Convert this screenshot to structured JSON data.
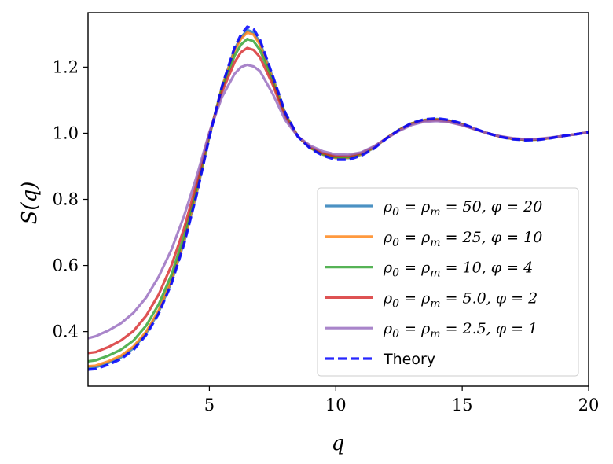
{
  "chart_data": {
    "type": "line",
    "title": "",
    "xlabel": "q",
    "ylabel": "S(q)",
    "xlim": [
      0.2,
      20
    ],
    "ylim": [
      0.235,
      1.365
    ],
    "x_ticks": [
      5,
      10,
      15,
      20
    ],
    "y_ticks": [
      0.4,
      0.6,
      0.8,
      1.0,
      1.2
    ],
    "x_tick_labels": [
      "5",
      "10",
      "15",
      "20"
    ],
    "y_tick_labels": [
      "0.4",
      "0.6",
      "0.8",
      "1.0",
      "1.2"
    ],
    "grid": false,
    "legend_position": "lower-right",
    "x": [
      0.2,
      0.5,
      1.0,
      1.5,
      2.0,
      2.5,
      3.0,
      3.5,
      4.0,
      4.5,
      5.0,
      5.5,
      6.0,
      6.25,
      6.5,
      6.75,
      7.0,
      7.5,
      8.0,
      8.5,
      9.0,
      9.5,
      10.0,
      10.5,
      11.0,
      11.5,
      12.0,
      12.5,
      13.0,
      13.5,
      14.0,
      14.5,
      15.0,
      15.5,
      16.0,
      16.5,
      17.0,
      17.5,
      18.0,
      18.5,
      19.0,
      19.5,
      20.0
    ],
    "series": [
      {
        "name": "ρ0 = ρm = 50, φ = 20",
        "legend_parts": [
          "ρ",
          "0",
          " = ρ",
          "m",
          " = 50, φ = 20"
        ],
        "color": "#1f77b4",
        "style": "solid",
        "values": [
          0.29,
          0.292,
          0.305,
          0.322,
          0.35,
          0.395,
          0.46,
          0.55,
          0.67,
          0.82,
          0.99,
          1.14,
          1.255,
          1.29,
          1.312,
          1.305,
          1.275,
          1.17,
          1.06,
          0.99,
          0.955,
          0.935,
          0.925,
          0.925,
          0.935,
          0.955,
          0.985,
          1.01,
          1.03,
          1.04,
          1.043,
          1.038,
          1.028,
          1.013,
          1.0,
          0.99,
          0.983,
          0.98,
          0.981,
          0.986,
          0.992,
          0.997,
          1.003
        ]
      },
      {
        "name": "ρ0 = ρm = 25, φ = 10",
        "legend_parts": [
          "ρ",
          "0",
          " = ρ",
          "m",
          " = 25, φ = 10"
        ],
        "color": "#ff7f0e",
        "style": "solid",
        "values": [
          0.295,
          0.297,
          0.31,
          0.327,
          0.355,
          0.4,
          0.465,
          0.555,
          0.675,
          0.825,
          0.992,
          1.14,
          1.25,
          1.285,
          1.305,
          1.298,
          1.268,
          1.165,
          1.058,
          0.99,
          0.955,
          0.936,
          0.926,
          0.926,
          0.936,
          0.956,
          0.985,
          1.01,
          1.03,
          1.04,
          1.042,
          1.037,
          1.027,
          1.013,
          1.0,
          0.99,
          0.983,
          0.98,
          0.981,
          0.986,
          0.992,
          0.997,
          1.003
        ]
      },
      {
        "name": "ρ0 = ρm = 10, φ = 4",
        "legend_parts": [
          "ρ",
          "0",
          " = ρ",
          "m",
          " = 10, φ = 4"
        ],
        "color": "#2ca02c",
        "style": "solid",
        "values": [
          0.31,
          0.313,
          0.327,
          0.345,
          0.373,
          0.418,
          0.483,
          0.572,
          0.69,
          0.835,
          0.995,
          1.135,
          1.235,
          1.268,
          1.285,
          1.278,
          1.252,
          1.158,
          1.055,
          0.99,
          0.956,
          0.937,
          0.928,
          0.928,
          0.938,
          0.957,
          0.985,
          1.01,
          1.029,
          1.039,
          1.041,
          1.036,
          1.026,
          1.012,
          1.0,
          0.99,
          0.983,
          0.98,
          0.981,
          0.986,
          0.992,
          0.997,
          1.003
        ]
      },
      {
        "name": "ρ0 = ρm = 5.0, φ = 2",
        "legend_parts": [
          "ρ",
          "0",
          " = ρ",
          "m",
          " = 5.0, φ = 2"
        ],
        "color": "#d62728",
        "style": "solid",
        "values": [
          0.335,
          0.338,
          0.353,
          0.373,
          0.402,
          0.448,
          0.513,
          0.6,
          0.712,
          0.85,
          1.0,
          1.125,
          1.215,
          1.245,
          1.258,
          1.252,
          1.23,
          1.148,
          1.05,
          0.99,
          0.958,
          0.94,
          0.931,
          0.931,
          0.94,
          0.958,
          0.985,
          1.009,
          1.028,
          1.038,
          1.04,
          1.035,
          1.025,
          1.012,
          1.0,
          0.99,
          0.984,
          0.981,
          0.982,
          0.986,
          0.992,
          0.997,
          1.003
        ]
      },
      {
        "name": "ρ0 = ρm = 2.5, φ = 1",
        "legend_parts": [
          "ρ",
          "0",
          " = ρ",
          "m",
          " = 2.5, φ = 1"
        ],
        "color": "#9467bd",
        "style": "solid",
        "values": [
          0.38,
          0.386,
          0.403,
          0.425,
          0.457,
          0.503,
          0.567,
          0.648,
          0.75,
          0.87,
          1.003,
          1.11,
          1.18,
          1.2,
          1.207,
          1.202,
          1.188,
          1.12,
          1.04,
          0.99,
          0.962,
          0.945,
          0.936,
          0.935,
          0.942,
          0.96,
          0.984,
          1.007,
          1.025,
          1.035,
          1.037,
          1.033,
          1.024,
          1.012,
          1.0,
          0.991,
          0.985,
          0.982,
          0.983,
          0.987,
          0.992,
          0.997,
          1.003
        ]
      },
      {
        "name": "Theory",
        "legend_parts": [
          "Theory"
        ],
        "color": "#0000ff",
        "style": "dashed",
        "values": [
          0.285,
          0.287,
          0.3,
          0.317,
          0.345,
          0.39,
          0.455,
          0.545,
          0.665,
          0.815,
          0.988,
          1.142,
          1.26,
          1.298,
          1.322,
          1.315,
          1.283,
          1.175,
          1.062,
          0.99,
          0.953,
          0.932,
          0.92,
          0.92,
          0.932,
          0.953,
          0.984,
          1.01,
          1.031,
          1.042,
          1.045,
          1.04,
          1.029,
          1.014,
          1.0,
          0.989,
          0.982,
          0.979,
          0.98,
          0.985,
          0.992,
          0.997,
          1.003
        ]
      }
    ]
  }
}
